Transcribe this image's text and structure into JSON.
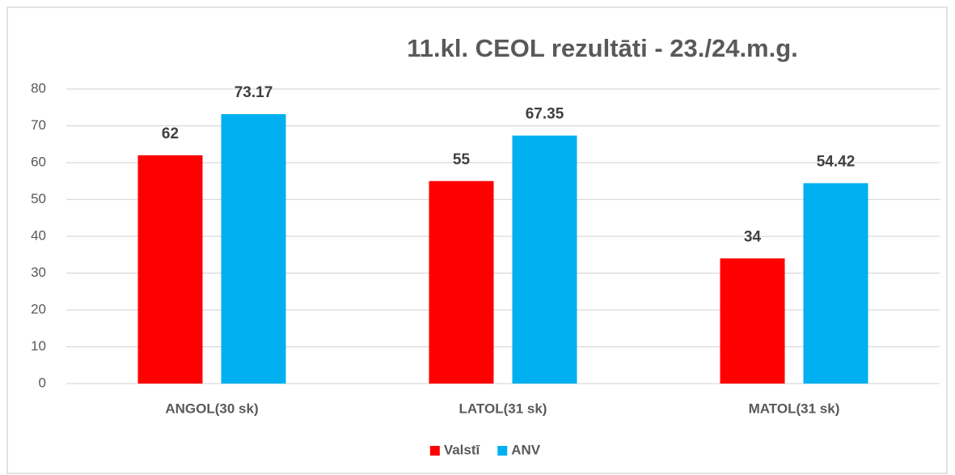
{
  "chart_data": {
    "type": "bar",
    "title": "11.kl. CEOL rezultāti - 23./24.m.g.",
    "categories": [
      "ANGOL(30 sk)",
      "LATOL(31 sk)",
      "MATOL(31 sk)"
    ],
    "series": [
      {
        "name": "Valstī",
        "color": "#ff0000",
        "values": [
          62,
          55,
          34
        ]
      },
      {
        "name": "ANV",
        "color": "#00b0f0",
        "values": [
          73.17,
          67.35,
          54.42
        ]
      }
    ],
    "ylim": [
      0,
      80
    ],
    "yticks": [
      0,
      10,
      20,
      30,
      40,
      50,
      60,
      70,
      80
    ],
    "grid": true,
    "legend": "bottom"
  }
}
